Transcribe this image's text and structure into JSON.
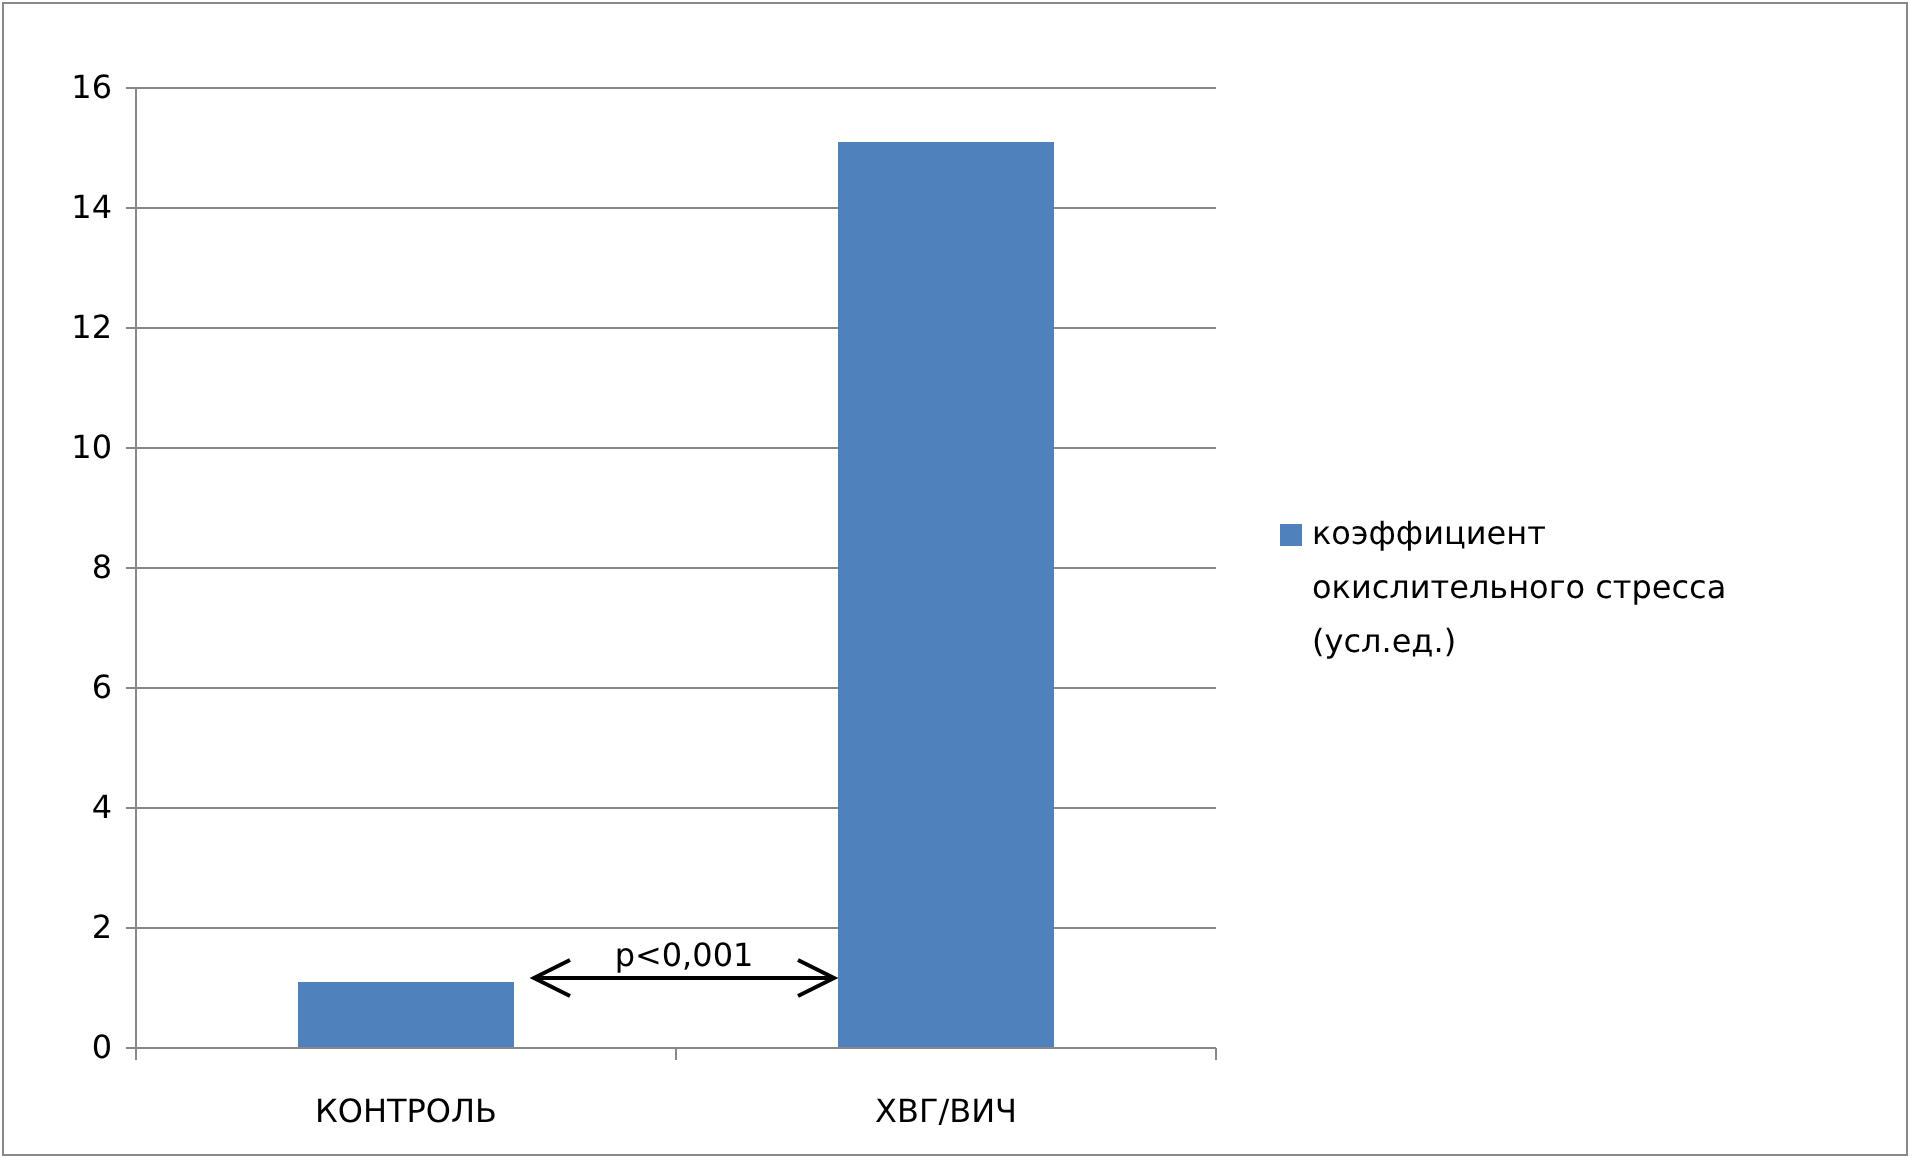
{
  "chart_data": {
    "type": "bar",
    "categories": [
      "КОНТРОЛЬ",
      "ХВГ/ВИЧ"
    ],
    "series": [
      {
        "name": "коэффициент окислительного стресса (усл.ед.)",
        "color": "#4f81bd",
        "values": [
          1.1,
          15.1
        ]
      }
    ],
    "ylim": [
      0,
      16
    ],
    "yticks": [
      0,
      2,
      4,
      6,
      8,
      10,
      12,
      14,
      16
    ],
    "grid": "y",
    "legend": "right",
    "annotations": [
      "p<0,001"
    ]
  }
}
